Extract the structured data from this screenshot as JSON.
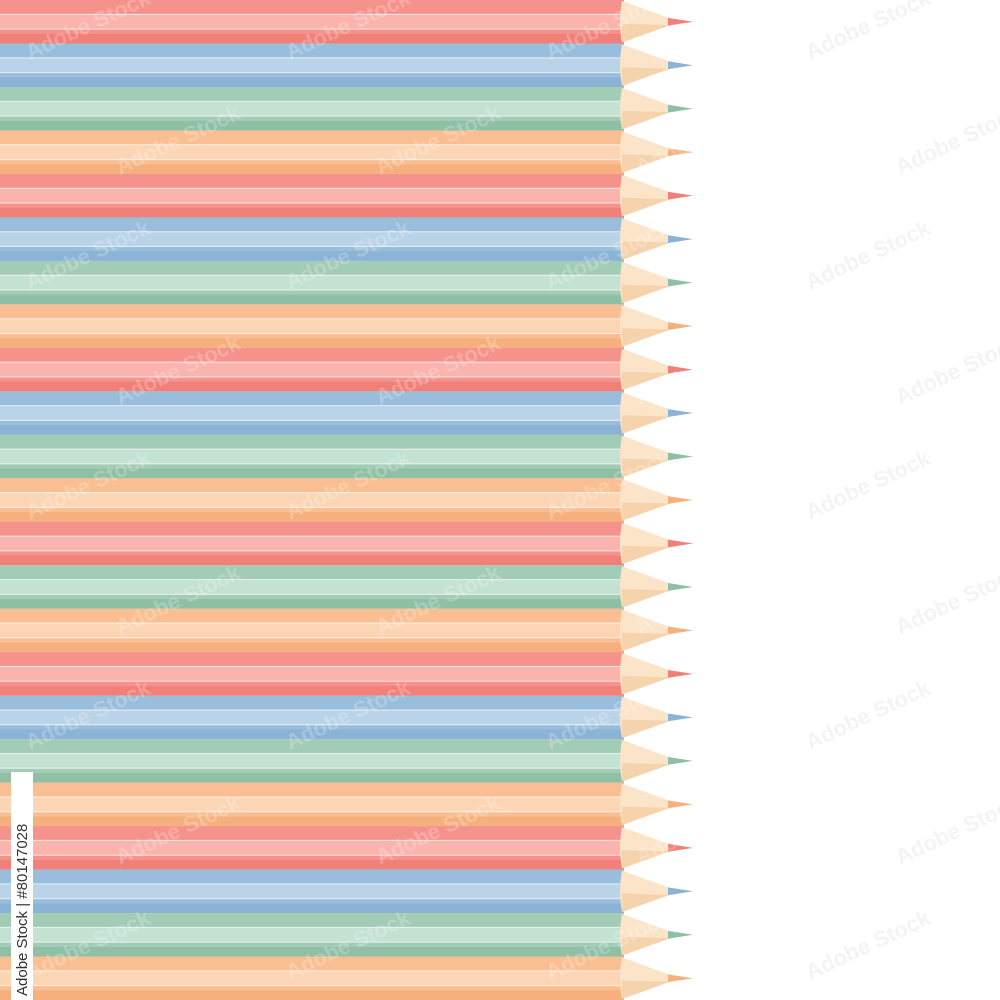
{
  "image": {
    "side_label": "Adobe Stock | #80147028",
    "watermark_text": "Adobe Stock"
  }
}
